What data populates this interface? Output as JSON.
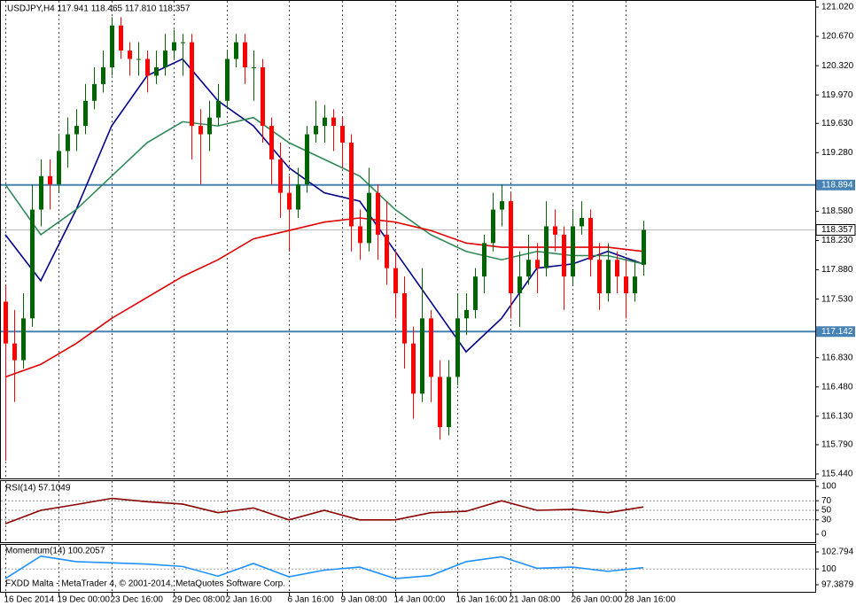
{
  "chart_data": [
    {
      "type": "candlestick",
      "title": "USDJPY,H4  117.941 118.465 117.810 118.357",
      "up_color": "#006400",
      "down_color": "#ff0000",
      "ylim": [
        115.44,
        121.02
      ],
      "yticks": [
        {
          "value": 121.02,
          "label": "121.020"
        },
        {
          "value": 120.67,
          "label": "120.670"
        },
        {
          "value": 120.32,
          "label": "120.320"
        },
        {
          "value": 119.97,
          "label": "119.970"
        },
        {
          "value": 119.63,
          "label": "119.630"
        },
        {
          "value": 119.28,
          "label": "119.280"
        },
        {
          "value": 118.58,
          "label": "118.580"
        },
        {
          "value": 118.23,
          "label": "118.230"
        },
        {
          "value": 117.88,
          "label": "117.880"
        },
        {
          "value": 117.53,
          "label": "117.530"
        },
        {
          "value": 116.83,
          "label": "116.830"
        },
        {
          "value": 116.48,
          "label": "116.480"
        },
        {
          "value": 116.13,
          "label": "116.130"
        },
        {
          "value": 115.79,
          "label": "115.790"
        },
        {
          "value": 115.44,
          "label": "115.440"
        }
      ],
      "xticks": [
        {
          "value": 0,
          "label": "16 Dec 2014"
        },
        {
          "value": 6,
          "label": "19 Dec 00:00"
        },
        {
          "value": 12,
          "label": "23 Dec 16:00"
        },
        {
          "value": 19,
          "label": "29 Dec 08:00"
        },
        {
          "value": 25,
          "label": "2 Jan 16:00"
        },
        {
          "value": 32,
          "label": "6 Jan 16:00"
        },
        {
          "value": 38,
          "label": "9 Jan 08:00"
        },
        {
          "value": 44,
          "label": "14 Jan 00:00"
        },
        {
          "value": 51,
          "label": "16 Jan 16:00"
        },
        {
          "value": 57,
          "label": "21 Jan 08:00"
        },
        {
          "value": 64,
          "label": "26 Jan 00:00"
        },
        {
          "value": 70,
          "label": "28 Jan 16:00"
        }
      ],
      "ohlc": [
        [
          117.5,
          117.7,
          115.6,
          117.0
        ],
        [
          117.0,
          117.4,
          116.3,
          116.8
        ],
        [
          116.8,
          117.6,
          116.7,
          117.3
        ],
        [
          117.3,
          118.9,
          117.2,
          118.6
        ],
        [
          118.6,
          119.2,
          118.4,
          119.0
        ],
        [
          119.0,
          119.2,
          118.6,
          118.9
        ],
        [
          118.9,
          119.5,
          118.8,
          119.3
        ],
        [
          119.3,
          119.7,
          119.1,
          119.5
        ],
        [
          119.5,
          119.8,
          119.3,
          119.6
        ],
        [
          119.6,
          120.1,
          119.5,
          119.9
        ],
        [
          119.9,
          120.3,
          119.8,
          120.1
        ],
        [
          120.1,
          120.5,
          120.0,
          120.3
        ],
        [
          120.3,
          120.9,
          120.2,
          120.8
        ],
        [
          120.8,
          120.9,
          120.4,
          120.5
        ],
        [
          120.5,
          120.6,
          120.2,
          120.4
        ],
        [
          120.4,
          120.6,
          120.2,
          120.4
        ],
        [
          120.4,
          120.5,
          120.0,
          120.2
        ],
        [
          120.2,
          120.5,
          120.1,
          120.3
        ],
        [
          120.3,
          120.7,
          120.2,
          120.5
        ],
        [
          120.5,
          120.75,
          120.4,
          120.6
        ],
        [
          120.6,
          120.7,
          120.2,
          120.6
        ],
        [
          120.6,
          120.7,
          119.2,
          119.6
        ],
        [
          119.6,
          119.8,
          118.9,
          119.5
        ],
        [
          119.5,
          119.9,
          119.3,
          119.7
        ],
        [
          119.7,
          120.1,
          119.6,
          119.9
        ],
        [
          119.9,
          120.5,
          119.8,
          120.4
        ],
        [
          120.4,
          120.7,
          120.3,
          120.6
        ],
        [
          120.6,
          120.7,
          120.1,
          120.3
        ],
        [
          120.3,
          120.5,
          119.9,
          120.3
        ],
        [
          120.3,
          120.4,
          119.4,
          119.6
        ],
        [
          119.6,
          119.7,
          118.9,
          119.2
        ],
        [
          119.2,
          119.4,
          118.5,
          118.8
        ],
        [
          118.8,
          119.0,
          118.1,
          118.6
        ],
        [
          118.6,
          119.1,
          118.5,
          118.9
        ],
        [
          118.9,
          119.6,
          118.8,
          119.5
        ],
        [
          119.5,
          119.9,
          119.4,
          119.6
        ],
        [
          119.6,
          119.85,
          119.4,
          119.7
        ],
        [
          119.7,
          119.8,
          119.3,
          119.6
        ],
        [
          119.6,
          119.7,
          119.1,
          119.4
        ],
        [
          119.4,
          119.5,
          118.1,
          118.4
        ],
        [
          118.4,
          118.6,
          118.0,
          118.2
        ],
        [
          118.2,
          119.1,
          118.1,
          118.8
        ],
        [
          118.8,
          118.9,
          118.0,
          118.3
        ],
        [
          118.3,
          118.7,
          117.7,
          117.9
        ],
        [
          117.9,
          118.1,
          117.3,
          117.6
        ],
        [
          117.6,
          117.8,
          116.7,
          117.0
        ],
        [
          117.0,
          117.2,
          116.1,
          116.4
        ],
        [
          116.4,
          117.9,
          116.3,
          117.3
        ],
        [
          117.3,
          117.4,
          116.3,
          116.6
        ],
        [
          116.6,
          116.8,
          115.85,
          116.0
        ],
        [
          116.0,
          116.8,
          115.9,
          116.6
        ],
        [
          116.6,
          117.6,
          116.5,
          117.3
        ],
        [
          117.3,
          117.6,
          117.1,
          117.4
        ],
        [
          117.4,
          117.9,
          117.3,
          117.8
        ],
        [
          117.8,
          118.3,
          117.6,
          118.2
        ],
        [
          118.2,
          118.8,
          118.1,
          118.6
        ],
        [
          118.6,
          118.9,
          118.4,
          118.7
        ],
        [
          118.7,
          118.8,
          117.3,
          117.6
        ],
        [
          117.6,
          118.1,
          117.2,
          117.8
        ],
        [
          117.8,
          118.3,
          117.7,
          118.0
        ],
        [
          118.0,
          118.2,
          117.6,
          117.9
        ],
        [
          117.9,
          118.7,
          117.8,
          118.4
        ],
        [
          118.4,
          118.6,
          118.1,
          118.3
        ],
        [
          118.3,
          118.4,
          117.4,
          117.8
        ],
        [
          117.8,
          118.6,
          117.7,
          118.4
        ],
        [
          118.4,
          118.7,
          118.3,
          118.5
        ],
        [
          118.5,
          118.6,
          117.8,
          118.0
        ],
        [
          118.0,
          118.2,
          117.4,
          117.6
        ],
        [
          117.6,
          118.2,
          117.5,
          118.0
        ],
        [
          118.0,
          118.1,
          117.6,
          117.8
        ],
        [
          117.8,
          118.0,
          117.3,
          117.6
        ],
        [
          117.6,
          118.0,
          117.5,
          117.8
        ],
        [
          117.941,
          118.465,
          117.81,
          118.357
        ]
      ],
      "x": [
        0,
        4,
        8,
        12,
        16,
        20,
        24,
        28,
        32,
        36,
        40,
        44,
        48,
        52,
        56,
        60,
        64,
        68,
        72
      ],
      "series": [
        {
          "color": "#00008b",
          "values": [
            118.3,
            117.75,
            118.6,
            119.6,
            120.2,
            120.4,
            119.9,
            119.6,
            119.1,
            118.8,
            118.7,
            118.1,
            117.5,
            116.9,
            117.3,
            117.9,
            117.95,
            118.1,
            117.95
          ]
        },
        {
          "color": "#2e8b57",
          "values": [
            118.9,
            118.3,
            118.6,
            119.0,
            119.4,
            119.65,
            119.6,
            119.7,
            119.4,
            119.2,
            119.0,
            118.6,
            118.3,
            118.1,
            118.0,
            118.1,
            118.05,
            118.05,
            117.95
          ]
        },
        {
          "color": "#e00000",
          "values": [
            116.6,
            116.75,
            117.0,
            117.3,
            117.55,
            117.8,
            118.0,
            118.25,
            118.35,
            118.45,
            118.5,
            118.45,
            118.35,
            118.2,
            118.15,
            118.15,
            118.15,
            118.15,
            118.1
          ]
        }
      ],
      "hlines": [
        {
          "value": 118.894,
          "color": "#4682b4"
        },
        {
          "value": 117.142,
          "color": "#4682b4"
        }
      ],
      "last_price": 118.357
    },
    {
      "type": "line",
      "title": "RSI(14) 57.1049",
      "x": [
        0,
        4,
        8,
        12,
        16,
        20,
        24,
        28,
        32,
        36,
        40,
        44,
        48,
        52,
        56,
        60,
        64,
        68,
        72
      ],
      "series": [
        {
          "color": "#8b0000",
          "values": [
            22,
            50,
            62,
            75,
            68,
            63,
            45,
            55,
            30,
            50,
            30,
            30,
            45,
            48,
            70,
            50,
            52,
            45,
            57.1049
          ]
        }
      ],
      "ylim": [
        0,
        100
      ],
      "yticks": [
        100,
        70,
        50,
        30,
        0
      ],
      "levels": [
        70,
        50,
        30
      ]
    },
    {
      "type": "line",
      "title": "Momentum(14) 100.2057",
      "x": [
        0,
        4,
        8,
        12,
        16,
        20,
        24,
        28,
        32,
        36,
        40,
        44,
        48,
        52,
        56,
        60,
        64,
        68,
        72
      ],
      "series": [
        {
          "color": "#1e90ff",
          "values": [
            98.4,
            102.1,
            101.2,
            101.0,
            100.8,
            100.4,
            98.8,
            100.9,
            98.7,
            99.8,
            100.3,
            98.4,
            98.9,
            101.2,
            102.0,
            100.1,
            100.3,
            99.6,
            100.2057
          ]
        }
      ],
      "ylim": [
        97.3879,
        102.794
      ],
      "yticks": [
        102.794,
        100,
        97.3879
      ],
      "levels": [
        100
      ]
    }
  ],
  "footer": "FXDD Malta - MetaTrader 4, © 2001-2014, MetaQuotes Software Corp."
}
